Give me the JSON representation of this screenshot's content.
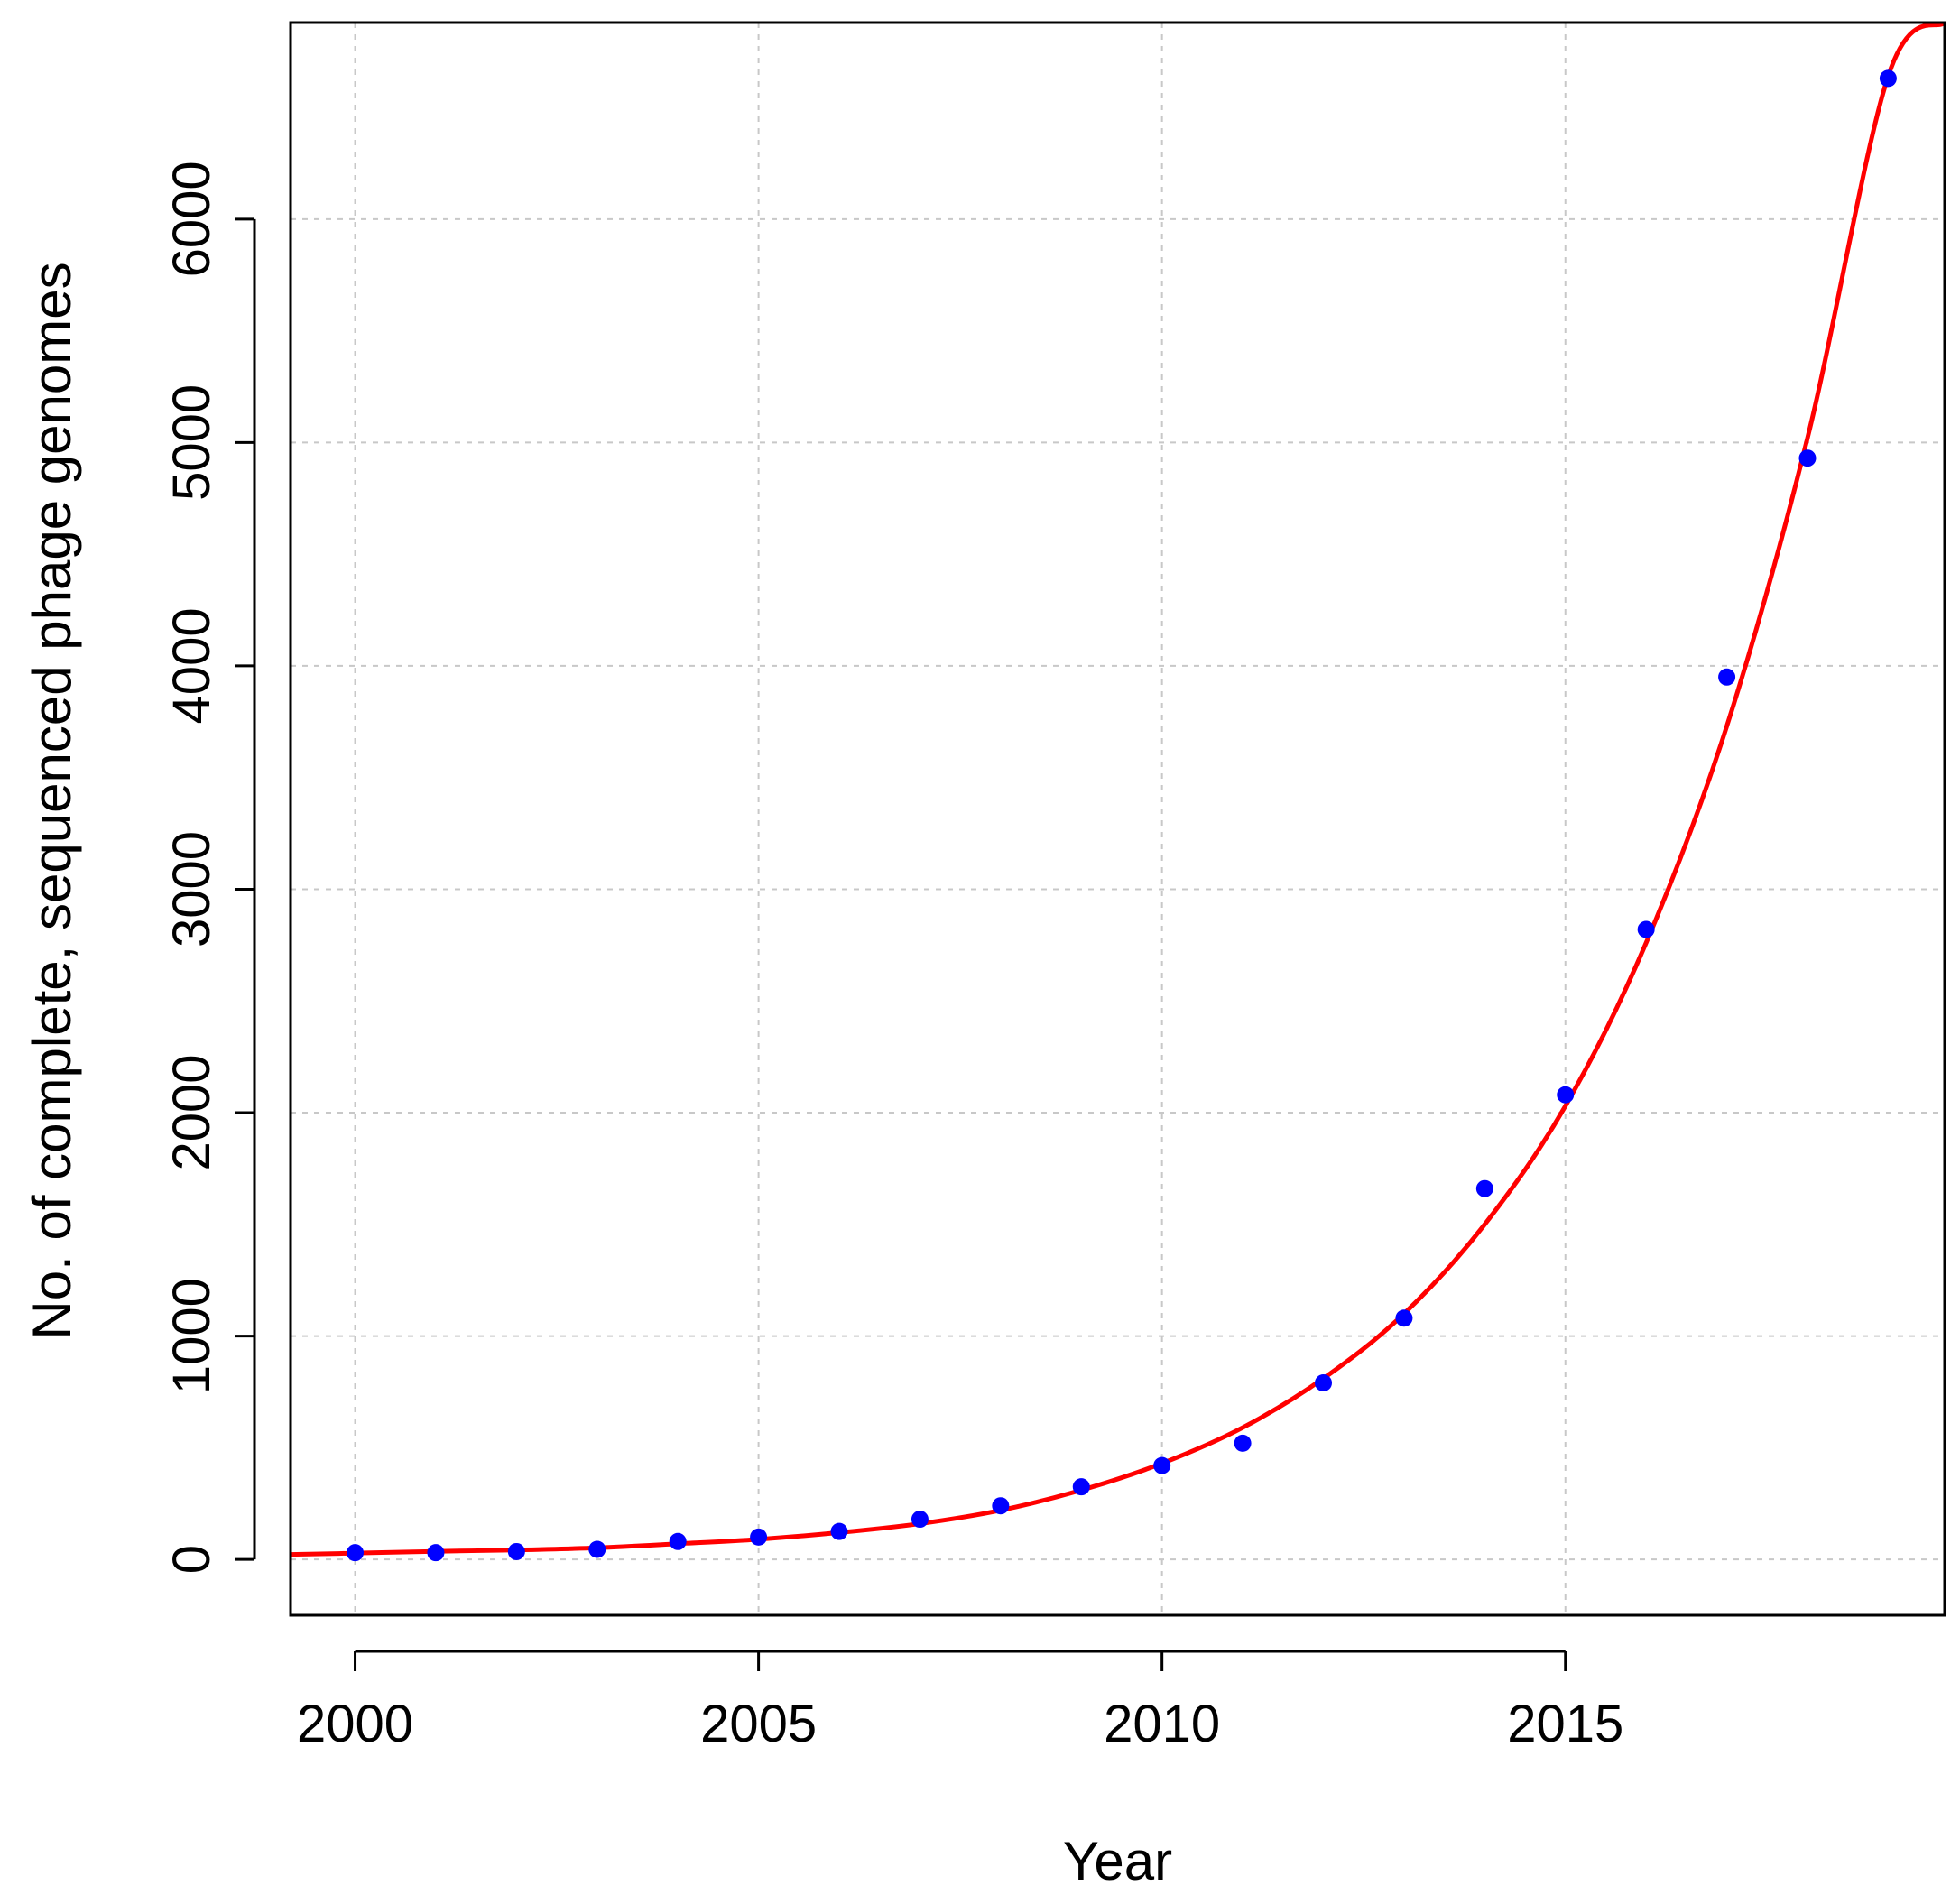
{
  "chart_data": {
    "type": "scatter",
    "xlabel": "Year",
    "ylabel": "No. of complete, sequenced phage genomes",
    "xlim": [
      1999.2,
      2019.7
    ],
    "ylim": [
      -250,
      6880
    ],
    "xticks": [
      2000,
      2005,
      2010,
      2015
    ],
    "yticks": [
      0,
      1000,
      2000,
      3000,
      4000,
      5000,
      6000
    ],
    "grid": true,
    "series": [
      {
        "kind": "points",
        "color": "#0000ff",
        "x": [
          2000,
          2001,
          2002,
          2003,
          2004,
          2005,
          2006,
          2007,
          2008,
          2009,
          2010,
          2011,
          2012,
          2013,
          2014,
          2015,
          2016,
          2017,
          2018,
          2019
        ],
        "y": [
          30,
          30,
          35,
          45,
          80,
          100,
          125,
          180,
          240,
          325,
          420,
          520,
          790,
          1080,
          1660,
          2080,
          2820,
          3950,
          4930,
          6630
        ]
      },
      {
        "kind": "fitted-curve",
        "color": "#ff0000",
        "x": [
          1999.2,
          2000,
          2001,
          2002,
          2003,
          2004,
          2005,
          2006,
          2007,
          2008,
          2009,
          2010,
          2011,
          2012,
          2013,
          2014,
          2015,
          2016,
          2017,
          2018,
          2019,
          2019.7
        ],
        "y": [
          22,
          28,
          36,
          42,
          52,
          70,
          90,
          120,
          160,
          220,
          310,
          430,
          590,
          810,
          1100,
          1500,
          2030,
          2760,
          3730,
          5020,
          6640,
          6880
        ]
      }
    ]
  }
}
